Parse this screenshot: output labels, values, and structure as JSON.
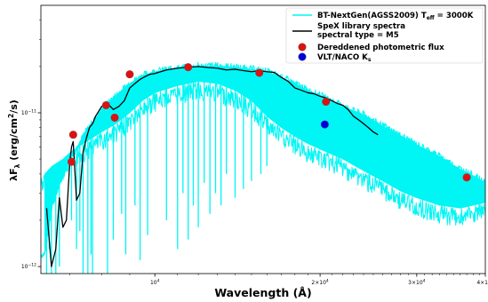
{
  "chart_data": {
    "type": "line",
    "xscale": "log",
    "yscale": "log",
    "xlim": [
      6200,
      40000
    ],
    "ylim": [
      9e-13,
      5e-11
    ],
    "xlabel": "Wavelength (Å)",
    "ylabel": "λF",
    "ylabel_sub": "λ",
    "ylabel_tail": " (erg/cm",
    "ylabel_sup": "2",
    "ylabel_end": "/s)",
    "xticks": [
      {
        "value": 10000,
        "base": "10",
        "exp": "4"
      },
      {
        "value": 20000,
        "base": "2×10",
        "exp": "4"
      },
      {
        "value": 30000,
        "base": "3×10",
        "exp": "4"
      },
      {
        "value": 40000,
        "base": "4×10",
        "exp": "4"
      }
    ],
    "yticks": [
      {
        "value": 1e-11,
        "base": "10",
        "exp": "−11"
      },
      {
        "value": 1e-12,
        "base": "10",
        "exp": "−12"
      }
    ],
    "colors": {
      "model": "#00f5f5",
      "spectrum": "#000000",
      "phot": "#dd1111",
      "naco": "#0000dd"
    },
    "legend": {
      "position": "top-right",
      "model_label": "BT-NextGen(AGSS2009) T",
      "model_sub": "eff",
      "model_tail": " = 3000K",
      "spex_line1": "SpeX library spectra",
      "spex_line2": "spectral type = M5",
      "phot_label": "Dereddened photometric flux",
      "naco_label": "VLT/NACO K",
      "naco_sub": "s"
    },
    "series": [
      {
        "id": "model",
        "envelope_upper": [
          [
            6300,
            1.2e-12
          ],
          [
            6500,
            2.5e-12
          ],
          [
            6800,
            3.9e-12
          ],
          [
            7000,
            5e-12
          ],
          [
            7500,
            7.6e-12
          ],
          [
            8000,
            1.05e-11
          ],
          [
            8500,
            1.3e-11
          ],
          [
            9000,
            1.55e-11
          ],
          [
            9500,
            1.75e-11
          ],
          [
            10000,
            1.85e-11
          ],
          [
            11000,
            1.95e-11
          ],
          [
            12000,
            2e-11
          ],
          [
            13000,
            2.02e-11
          ],
          [
            14000,
            1.98e-11
          ],
          [
            15000,
            1.92e-11
          ],
          [
            16000,
            1.85e-11
          ],
          [
            17000,
            1.7e-11
          ],
          [
            18000,
            1.55e-11
          ],
          [
            19000,
            1.4e-11
          ],
          [
            20000,
            1.3e-11
          ],
          [
            22000,
            1.1e-11
          ],
          [
            24000,
            9.7e-12
          ],
          [
            26000,
            8.2e-12
          ],
          [
            28000,
            7.1e-12
          ],
          [
            30000,
            6.2e-12
          ],
          [
            33000,
            5.2e-12
          ],
          [
            36000,
            4.3e-12
          ],
          [
            38000,
            3.9e-12
          ],
          [
            40000,
            3.5e-12
          ]
        ],
        "envelope_lower": [
          [
            6300,
            4e-12
          ],
          [
            6500,
            4.5e-12
          ],
          [
            6800,
            5e-12
          ],
          [
            7000,
            5.5e-12
          ],
          [
            7500,
            6.5e-12
          ],
          [
            8000,
            7.5e-12
          ],
          [
            8500,
            8.5e-12
          ],
          [
            9000,
            1e-11
          ],
          [
            9500,
            1.2e-11
          ],
          [
            10000,
            1.35e-11
          ],
          [
            11000,
            1.5e-11
          ],
          [
            12000,
            1.6e-11
          ],
          [
            13000,
            1.55e-11
          ],
          [
            14000,
            1.4e-11
          ],
          [
            15000,
            1.2e-11
          ],
          [
            16000,
            9.5e-12
          ],
          [
            17000,
            8e-12
          ],
          [
            18000,
            7e-12
          ],
          [
            19000,
            6.3e-12
          ],
          [
            20000,
            5.8e-12
          ],
          [
            22000,
            5e-12
          ],
          [
            24000,
            4.2e-12
          ],
          [
            26000,
            3.6e-12
          ],
          [
            28000,
            3.1e-12
          ],
          [
            30000,
            2.8e-12
          ],
          [
            33000,
            2.5e-12
          ],
          [
            36000,
            2.4e-12
          ],
          [
            38000,
            2.5e-12
          ],
          [
            40000,
            2.6e-12
          ]
        ],
        "deep_lines": [
          [
            6350,
            9e-13
          ],
          [
            6420,
            1.3e-12
          ],
          [
            6480,
            9e-13
          ],
          [
            6600,
            9e-13
          ],
          [
            6700,
            1e-12
          ],
          [
            7050,
            2e-12
          ],
          [
            7200,
            1.3e-12
          ],
          [
            7300,
            1.7e-12
          ],
          [
            7400,
            9e-13
          ],
          [
            7550,
            9e-13
          ],
          [
            7650,
            1.2e-12
          ],
          [
            7700,
            9e-13
          ],
          [
            8200,
            9e-13
          ],
          [
            8400,
            1.5e-12
          ],
          [
            8700,
            2.2e-12
          ],
          [
            8850,
            1.2e-12
          ],
          [
            9200,
            2.5e-12
          ],
          [
            9400,
            1.1e-12
          ],
          [
            9700,
            1.6e-12
          ],
          [
            10500,
            2e-12
          ],
          [
            11000,
            1.3e-12
          ],
          [
            11250,
            3e-12
          ],
          [
            11500,
            1.5e-12
          ],
          [
            11750,
            2.5e-12
          ],
          [
            12000,
            1.8e-12
          ],
          [
            12300,
            3.5e-12
          ],
          [
            12600,
            2.2e-12
          ],
          [
            12900,
            3e-12
          ],
          [
            13200,
            2.5e-12
          ],
          [
            13500,
            4e-12
          ],
          [
            14000,
            2.8e-12
          ],
          [
            14500,
            3.2e-12
          ],
          [
            15000,
            3.6e-12
          ],
          [
            15600,
            4e-12
          ],
          [
            16000,
            4.5e-12
          ]
        ]
      },
      {
        "id": "spex",
        "points": [
          [
            6350,
            2.4e-12
          ],
          [
            6420,
            1.5e-12
          ],
          [
            6480,
            1e-12
          ],
          [
            6600,
            1.3e-12
          ],
          [
            6700,
            2.8e-12
          ],
          [
            6800,
            1.8e-12
          ],
          [
            6900,
            2e-12
          ],
          [
            7000,
            4.8e-12
          ],
          [
            7050,
            6e-12
          ],
          [
            7100,
            6.5e-12
          ],
          [
            7200,
            2.7e-12
          ],
          [
            7300,
            3e-12
          ],
          [
            7400,
            5.5e-12
          ],
          [
            7500,
            6.8e-12
          ],
          [
            7600,
            8e-12
          ],
          [
            7700,
            8.5e-12
          ],
          [
            7800,
            9.5e-12
          ],
          [
            8000,
            1.1e-11
          ],
          [
            8200,
            1.15e-11
          ],
          [
            8400,
            1.05e-11
          ],
          [
            8600,
            1.1e-11
          ],
          [
            8800,
            1.2e-11
          ],
          [
            9000,
            1.45e-11
          ],
          [
            9200,
            1.55e-11
          ],
          [
            9400,
            1.65e-11
          ],
          [
            9600,
            1.72e-11
          ],
          [
            9800,
            1.78e-11
          ],
          [
            10000,
            1.8e-11
          ],
          [
            10500,
            1.9e-11
          ],
          [
            11000,
            1.95e-11
          ],
          [
            11500,
            1.98e-11
          ],
          [
            12000,
            2e-11
          ],
          [
            12500,
            1.97e-11
          ],
          [
            13000,
            1.95e-11
          ],
          [
            13500,
            1.9e-11
          ],
          [
            14000,
            1.92e-11
          ],
          [
            14500,
            1.88e-11
          ],
          [
            15000,
            1.85e-11
          ],
          [
            15500,
            1.88e-11
          ],
          [
            16000,
            1.85e-11
          ],
          [
            16500,
            1.83e-11
          ],
          [
            17000,
            1.7e-11
          ],
          [
            17500,
            1.6e-11
          ],
          [
            18000,
            1.45e-11
          ],
          [
            18500,
            1.4e-11
          ],
          [
            19000,
            1.35e-11
          ],
          [
            19500,
            1.33e-11
          ],
          [
            20000,
            1.28e-11
          ],
          [
            20500,
            1.25e-11
          ],
          [
            21000,
            1.2e-11
          ],
          [
            21500,
            1.15e-11
          ],
          [
            22000,
            1.12e-11
          ],
          [
            22500,
            1.05e-11
          ],
          [
            23000,
            9.5e-12
          ],
          [
            23500,
            9e-12
          ],
          [
            24000,
            8.5e-12
          ],
          [
            24500,
            8e-12
          ],
          [
            25000,
            7.5e-12
          ],
          [
            25500,
            7.2e-12
          ]
        ]
      },
      {
        "id": "phot",
        "points": [
          [
            7050,
            4.8e-12
          ],
          [
            7100,
            7.2e-12
          ],
          [
            8150,
            1.12e-11
          ],
          [
            8450,
            9.3e-12
          ],
          [
            9000,
            1.78e-11
          ],
          [
            11500,
            1.98e-11
          ],
          [
            15500,
            1.82e-11
          ],
          [
            20500,
            1.18e-11
          ],
          [
            37000,
            3.8e-12
          ]
        ]
      },
      {
        "id": "naco",
        "points": [
          [
            20400,
            8.4e-12
          ]
        ]
      }
    ]
  }
}
